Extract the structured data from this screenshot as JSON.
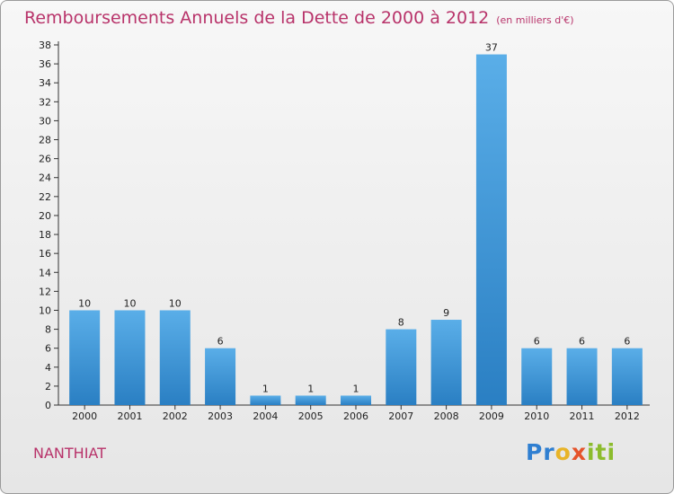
{
  "title": "Remboursements Annuels de la Dette de 2000 à 2012",
  "unit": "(en milliers d'€)",
  "commune": "NANTHIAT",
  "logo": {
    "p1": "Pr",
    "p2": "o",
    "p3": "x",
    "p4": "iti"
  },
  "colors": {
    "bar_light": "#5aaee8",
    "bar_dark": "#2a7fc3",
    "accent": "#b8336a"
  },
  "chart_data": {
    "type": "bar",
    "categories": [
      "2000",
      "2001",
      "2002",
      "2003",
      "2004",
      "2005",
      "2006",
      "2007",
      "2008",
      "2009",
      "2010",
      "2011",
      "2012"
    ],
    "values": [
      10,
      10,
      10,
      6,
      1,
      1,
      1,
      8,
      9,
      37,
      6,
      6,
      6
    ],
    "ylim": [
      0,
      38
    ],
    "yticks": [
      0,
      2,
      4,
      6,
      8,
      10,
      12,
      14,
      16,
      18,
      20,
      22,
      24,
      26,
      28,
      30,
      32,
      34,
      36,
      38
    ],
    "grid": false,
    "legend": "none"
  }
}
